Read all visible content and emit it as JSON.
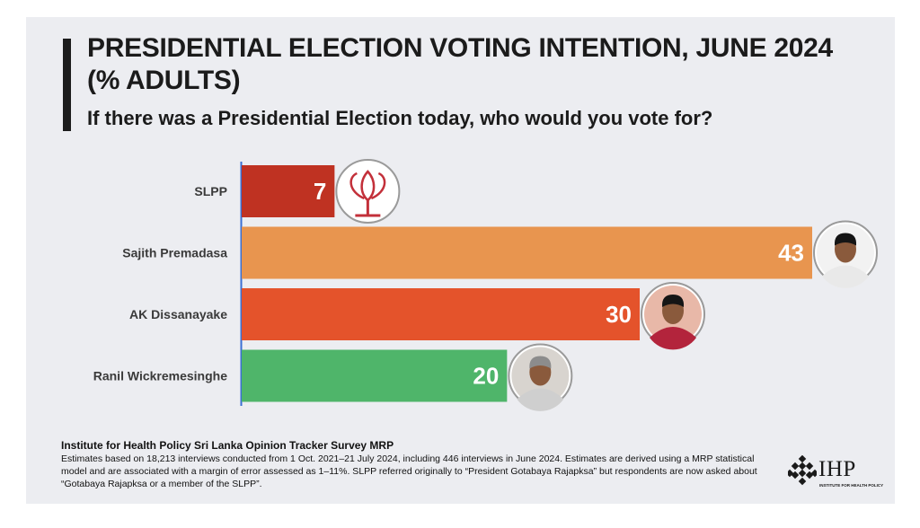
{
  "title": "PRESIDENTIAL ELECTION VOTING INTENTION, JUNE 2024 (% ADULTS)",
  "subtitle": "If there was a Presidential Election today, who would you vote for?",
  "chart_data": {
    "type": "bar",
    "orientation": "horizontal",
    "categories": [
      "SLPP",
      "Sajith Premadasa",
      "AK Dissanayake",
      "Ranil Wickremesinghe"
    ],
    "values": [
      7,
      43,
      30,
      20
    ],
    "colors": [
      "#bf3222",
      "#e8954f",
      "#e4532b",
      "#4fb56a"
    ],
    "data_labels": [
      "7",
      "43",
      "30",
      "20"
    ],
    "icons": [
      "slpp-lotus-icon",
      "sajith-premadasa-avatar",
      "ak-dissanayake-avatar",
      "ranil-wickremesinghe-avatar"
    ],
    "xlim": [
      0,
      45
    ],
    "grid": false,
    "legend": "none"
  },
  "footer": {
    "source": "Institute for Health Policy Sri Lanka Opinion Tracker Survey MRP",
    "note": "Estimates based on 18,213 interviews conducted from 1 Oct. 2021–21 July 2024, including 446 interviews in June 2024. Estimates are derived using a MRP statistical model and are associated with a margin of error assessed as 1–11%. SLPP referred originally to “President Gotabaya Rajapksa” but respondents are now asked about “Gotabaya Rajapksa or a member of the SLPP”."
  },
  "logo": {
    "name": "IHP",
    "tagline": "INSTITUTE FOR HEALTH POLICY"
  }
}
